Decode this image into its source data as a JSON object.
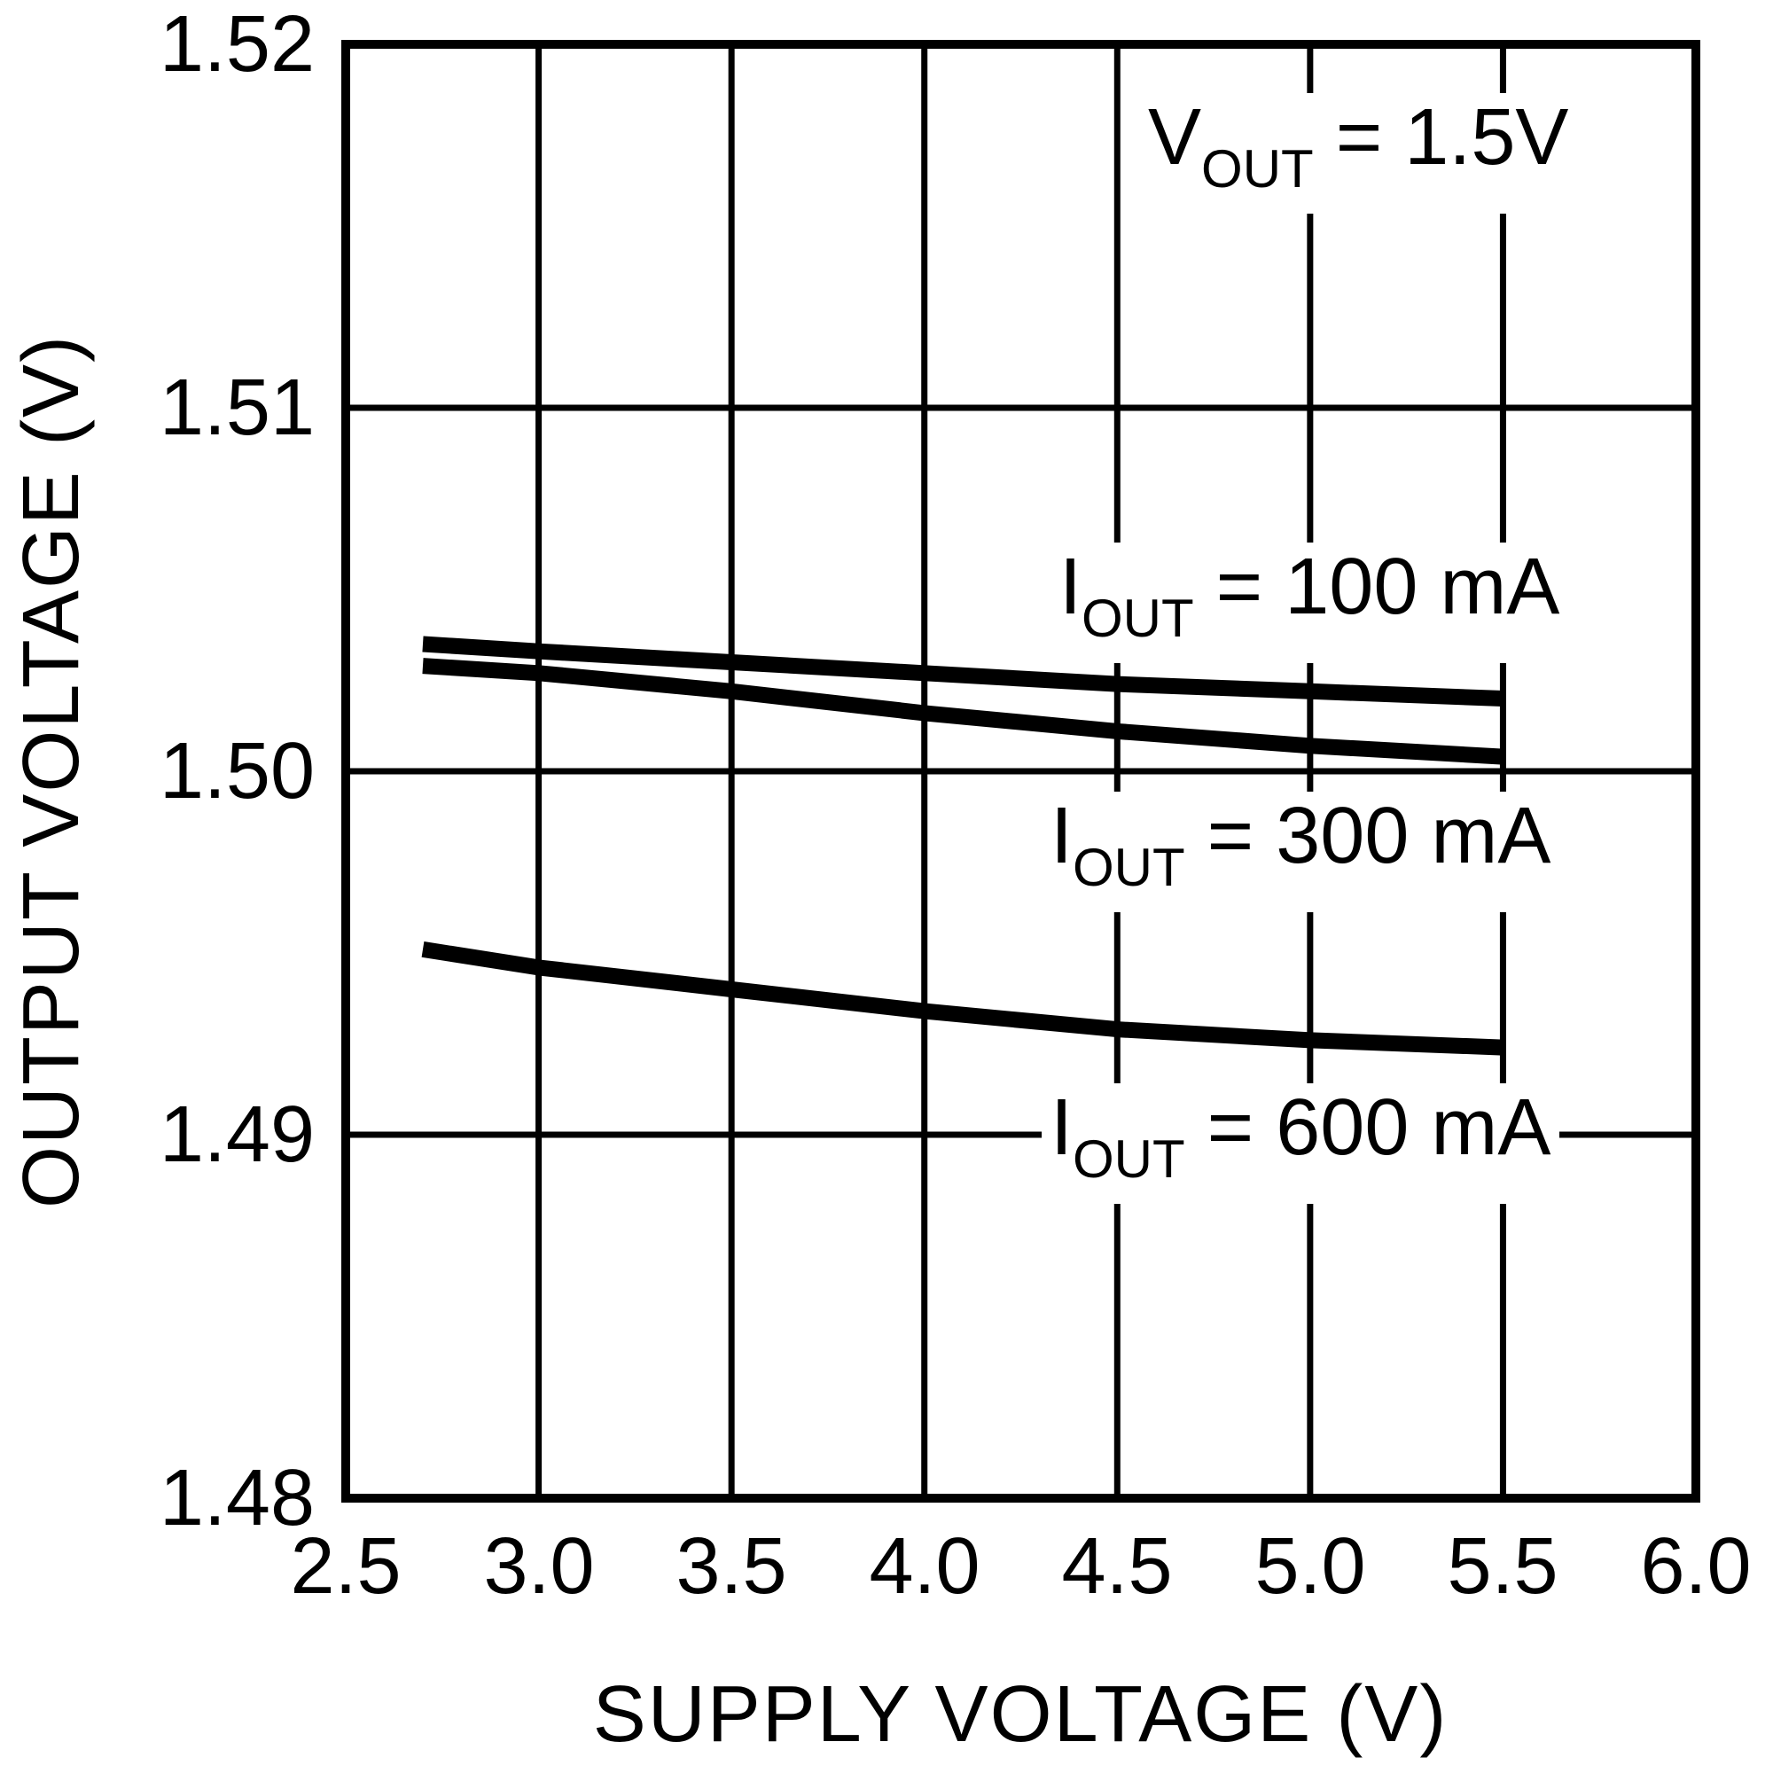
{
  "chart_data": {
    "type": "line",
    "title": "",
    "xlabel": "SUPPLY VOLTAGE (V)",
    "ylabel": "OUTPUT VOLTAGE (V)",
    "xlim": [
      2.5,
      6.0
    ],
    "ylim": [
      1.48,
      1.52
    ],
    "grid": true,
    "legend_position": "inline-labels",
    "line_color": "#000000",
    "background_color": "#ffffff",
    "xticks": [
      "2.5",
      "3.0",
      "3.5",
      "4.0",
      "4.5",
      "5.0",
      "5.5",
      "6.0"
    ],
    "yticks": [
      "1.52",
      "1.51",
      "1.50",
      "1.49",
      "1.48"
    ],
    "x": [
      2.7,
      3.0,
      3.5,
      4.0,
      4.5,
      5.0,
      5.5
    ],
    "series": [
      {
        "name": "IOUT = 100 mA",
        "values": [
          1.5035,
          1.5033,
          1.503,
          1.5027,
          1.5024,
          1.5022,
          1.502
        ]
      },
      {
        "name": "IOUT = 300 mA",
        "values": [
          1.5029,
          1.5027,
          1.5022,
          1.5016,
          1.5011,
          1.5007,
          1.5004
        ]
      },
      {
        "name": "IOUT = 600 mA",
        "values": [
          1.4951,
          1.4946,
          1.494,
          1.4934,
          1.4929,
          1.4926,
          1.4924
        ]
      }
    ],
    "annotation": {
      "sym": "V",
      "sub": "OUT",
      "rest": " = 1.5V"
    },
    "series_labels": [
      {
        "sym": "I",
        "sub": "OUT",
        "rest": " = 100 mA"
      },
      {
        "sym": "I",
        "sub": "OUT",
        "rest": " = 300 mA"
      },
      {
        "sym": "I",
        "sub": "OUT",
        "rest": " = 600 mA"
      }
    ]
  }
}
